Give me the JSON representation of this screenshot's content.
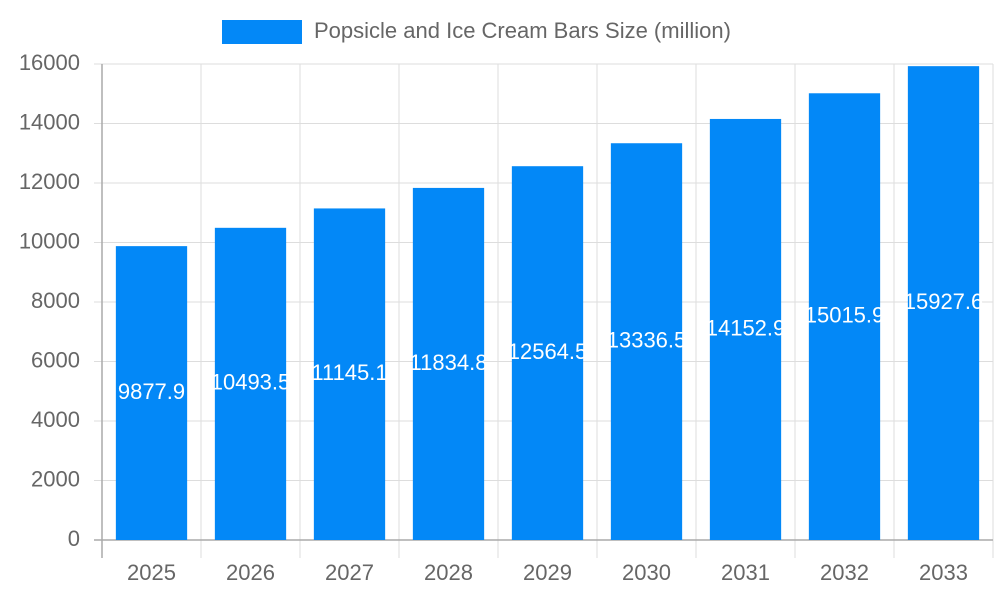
{
  "chart_data": {
    "type": "bar",
    "legend": "Popsicle and Ice Cream Bars Size (million)",
    "categories": [
      "2025",
      "2026",
      "2027",
      "2028",
      "2029",
      "2030",
      "2031",
      "2032",
      "2033"
    ],
    "values": [
      9877.9,
      10493.5,
      11145.1,
      11834.8,
      12564.5,
      13336.5,
      14152.9,
      15015.9,
      15927.6
    ],
    "color": "#0388f7",
    "ylim": [
      0,
      16000
    ],
    "yticks": [
      0,
      2000,
      4000,
      6000,
      8000,
      10000,
      12000,
      14000,
      16000
    ],
    "grid": true
  }
}
